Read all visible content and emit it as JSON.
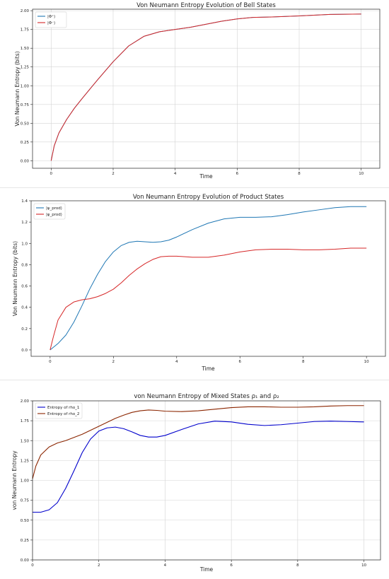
{
  "chart_data": [
    {
      "type": "line",
      "title": "Von Neumann Entropy Evolution of Bell States",
      "xlabel": "Time",
      "ylabel": "Von Neumann Entropy (bits)",
      "xlim": [
        -0.6,
        10.6
      ],
      "ylim": [
        -0.1,
        2.02
      ],
      "xticks": [
        0,
        2,
        4,
        6,
        8,
        10
      ],
      "yticks": [
        0.0,
        0.25,
        0.5,
        0.75,
        1.0,
        1.25,
        1.5,
        1.75,
        2.0
      ],
      "ytick_decimals": 2,
      "grid": true,
      "legend_position": "top-left",
      "series": [
        {
          "name": "|Φ⁺⟩",
          "color": "#1f77b4",
          "x": [
            0,
            0.1,
            0.25,
            0.5,
            0.75,
            1,
            1.5,
            2,
            2.5,
            3,
            3.5,
            4,
            4.5,
            5,
            5.5,
            6,
            6.5,
            7,
            8,
            9,
            10
          ],
          "y": [
            0,
            0.2,
            0.37,
            0.55,
            0.7,
            0.83,
            1.08,
            1.32,
            1.53,
            1.66,
            1.72,
            1.75,
            1.78,
            1.82,
            1.86,
            1.89,
            1.91,
            1.915,
            1.93,
            1.95,
            1.955
          ]
        },
        {
          "name": "|Φ⁻⟩",
          "color": "#d62728",
          "x": [
            0,
            0.1,
            0.25,
            0.5,
            0.75,
            1,
            1.5,
            2,
            2.5,
            3,
            3.5,
            4,
            4.5,
            5,
            5.5,
            6,
            6.5,
            7,
            8,
            9,
            10
          ],
          "y": [
            0,
            0.2,
            0.37,
            0.55,
            0.7,
            0.83,
            1.08,
            1.32,
            1.53,
            1.66,
            1.72,
            1.75,
            1.78,
            1.82,
            1.86,
            1.89,
            1.91,
            1.915,
            1.93,
            1.95,
            1.955
          ]
        }
      ]
    },
    {
      "type": "line",
      "title": "Von Neumann Entropy Evolution of Product States",
      "xlabel": "Time",
      "ylabel": "Von Neumann Entropy (bits)",
      "xlim": [
        -0.6,
        10.6
      ],
      "ylim": [
        -0.06,
        1.4
      ],
      "xticks": [
        0,
        2,
        4,
        6,
        8,
        10
      ],
      "yticks": [
        0.0,
        0.2,
        0.4,
        0.6,
        0.8,
        1.0,
        1.2,
        1.4
      ],
      "ytick_decimals": 1,
      "grid": false,
      "legend_position": "top-left",
      "series": [
        {
          "name": "|ψ_prod⟩",
          "color": "#1f77b4",
          "x": [
            0,
            0.25,
            0.5,
            0.75,
            1,
            1.25,
            1.5,
            1.75,
            2,
            2.25,
            2.5,
            2.75,
            3,
            3.25,
            3.5,
            3.75,
            4,
            4.5,
            5,
            5.5,
            6,
            6.5,
            7,
            7.5,
            8,
            8.5,
            9,
            9.5,
            10
          ],
          "y": [
            0,
            0.06,
            0.14,
            0.26,
            0.41,
            0.57,
            0.71,
            0.83,
            0.92,
            0.98,
            1.01,
            1.02,
            1.015,
            1.01,
            1.015,
            1.03,
            1.06,
            1.13,
            1.19,
            1.23,
            1.245,
            1.245,
            1.25,
            1.27,
            1.295,
            1.315,
            1.335,
            1.345,
            1.345
          ]
        },
        {
          "name": "|φ_prod⟩",
          "color": "#d62728",
          "x": [
            0,
            0.1,
            0.25,
            0.5,
            0.75,
            1,
            1.25,
            1.5,
            1.75,
            2,
            2.25,
            2.5,
            2.75,
            3,
            3.25,
            3.5,
            3.75,
            4,
            4.5,
            5,
            5.5,
            6,
            6.5,
            7,
            7.5,
            8,
            8.5,
            9,
            9.5,
            10
          ],
          "y": [
            0,
            0.12,
            0.28,
            0.4,
            0.45,
            0.47,
            0.48,
            0.5,
            0.53,
            0.57,
            0.63,
            0.7,
            0.76,
            0.81,
            0.85,
            0.875,
            0.88,
            0.88,
            0.87,
            0.87,
            0.89,
            0.92,
            0.94,
            0.945,
            0.945,
            0.94,
            0.94,
            0.945,
            0.955,
            0.955
          ]
        }
      ]
    },
    {
      "type": "line",
      "title": "von Neumann Entropy of Mixed States ρ₁ and ρ₂",
      "xlabel": "Time",
      "ylabel": "von Neumann Entropy",
      "xlim": [
        0,
        10.5
      ],
      "ylim": [
        0.0,
        2.0
      ],
      "xticks": [
        0,
        2,
        4,
        6,
        8,
        10
      ],
      "yticks": [
        0.0,
        0.25,
        0.5,
        0.75,
        1.0,
        1.25,
        1.5,
        1.75,
        2.0
      ],
      "ytick_decimals": 2,
      "grid": true,
      "legend_position": "top-left",
      "series": [
        {
          "name": "Entropy of rho_1",
          "color": "#0000cc",
          "x": [
            0,
            0.25,
            0.5,
            0.75,
            1,
            1.25,
            1.5,
            1.75,
            2,
            2.25,
            2.5,
            2.75,
            3,
            3.25,
            3.5,
            3.75,
            4,
            4.5,
            5,
            5.5,
            6,
            6.5,
            7,
            7.5,
            8,
            8.5,
            9,
            9.5,
            10
          ],
          "y": [
            0.6,
            0.6,
            0.63,
            0.72,
            0.9,
            1.12,
            1.35,
            1.52,
            1.62,
            1.66,
            1.67,
            1.65,
            1.61,
            1.565,
            1.545,
            1.545,
            1.565,
            1.64,
            1.71,
            1.745,
            1.735,
            1.705,
            1.69,
            1.7,
            1.72,
            1.74,
            1.745,
            1.74,
            1.735
          ]
        },
        {
          "name": "Entropy of rho_2",
          "color": "#8b2500",
          "x": [
            0,
            0.1,
            0.25,
            0.5,
            0.75,
            1,
            1.25,
            1.5,
            1.75,
            2,
            2.25,
            2.5,
            2.75,
            3,
            3.25,
            3.5,
            3.75,
            4,
            4.5,
            5,
            5.5,
            6,
            6.5,
            7,
            7.5,
            8,
            8.5,
            9,
            9.5,
            10
          ],
          "y": [
            1.02,
            1.18,
            1.32,
            1.42,
            1.47,
            1.5,
            1.54,
            1.58,
            1.63,
            1.68,
            1.73,
            1.78,
            1.82,
            1.855,
            1.875,
            1.885,
            1.88,
            1.87,
            1.865,
            1.875,
            1.895,
            1.915,
            1.925,
            1.925,
            1.92,
            1.92,
            1.925,
            1.935,
            1.94,
            1.94
          ]
        }
      ]
    }
  ]
}
